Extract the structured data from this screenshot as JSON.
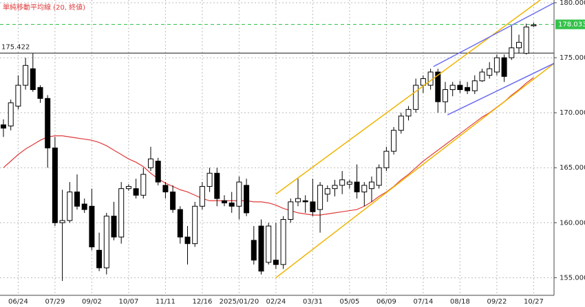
{
  "chart_data": {
    "type": "candlestick",
    "categories": [
      null,
      null,
      "06/24",
      null,
      null,
      null,
      null,
      "07/29",
      null,
      null,
      null,
      null,
      "09/02",
      null,
      null,
      null,
      null,
      "10/07",
      null,
      null,
      null,
      null,
      "11/11",
      null,
      null,
      null,
      null,
      "12/16",
      null,
      null,
      null,
      null,
      "2025/01/20",
      null,
      null,
      null,
      null,
      "02/24",
      null,
      null,
      null,
      null,
      "03/31",
      null,
      null,
      null,
      null,
      "05/05",
      null,
      null,
      null,
      null,
      "06/09",
      null,
      null,
      null,
      null,
      "07/14",
      null,
      null,
      null,
      null,
      "08/18",
      null,
      null,
      null,
      null,
      "09/22",
      null,
      null,
      null,
      null,
      "10/27"
    ],
    "open": [
      168.9,
      168.8,
      170.6,
      172.5,
      174.0,
      172.3,
      171.3,
      166.8,
      160.0,
      160.2,
      162.8,
      161.7,
      161.5,
      157.5,
      155.9,
      160.6,
      158.7,
      163.1,
      163.1,
      162.5,
      165.0,
      165.6,
      163.4,
      162.8,
      161.2,
      158.7,
      158.1,
      161.5,
      163.3,
      164.5,
      162.0,
      161.8,
      161.5,
      163.4,
      158.4,
      159.7,
      156.4,
      156.6,
      156.2,
      160.3,
      161.9,
      162.0,
      161.9,
      161.2,
      162.6,
      163.1,
      163.4,
      163.5,
      163.7,
      162.8,
      163.1,
      163.4,
      165.0,
      166.5,
      168.4,
      169.7,
      170.3,
      172.5,
      172.5,
      173.7,
      171.0,
      172.1,
      172.5,
      172.3,
      172.0,
      172.9,
      173.4,
      173.7,
      175.0,
      175.0,
      175.9,
      175.4,
      177.9
    ],
    "high": [
      169.4,
      171.2,
      173.4,
      175.0,
      175.4,
      172.5,
      171.6,
      167.8,
      163.0,
      163.7,
      164.4,
      162.2,
      163.1,
      159.1,
      160.9,
      161.9,
      163.7,
      163.5,
      164.0,
      165.0,
      166.9,
      165.9,
      163.7,
      163.4,
      161.5,
      159.7,
      161.9,
      163.7,
      165.0,
      165.0,
      162.5,
      162.8,
      164.2,
      164.0,
      159.7,
      160.3,
      160.0,
      160.0,
      160.6,
      162.2,
      164.0,
      162.5,
      164.0,
      163.7,
      163.4,
      163.9,
      164.7,
      163.9,
      165.3,
      163.7,
      164.2,
      165.3,
      166.9,
      168.7,
      170.0,
      170.6,
      173.1,
      173.4,
      174.0,
      174.0,
      172.8,
      172.8,
      172.9,
      172.8,
      173.4,
      174.0,
      174.6,
      175.3,
      175.3,
      177.9,
      177.1,
      178.1,
      178.2
    ],
    "low": [
      167.8,
      168.4,
      170.3,
      172.1,
      171.9,
      170.9,
      165.0,
      159.7,
      154.7,
      160.0,
      161.2,
      160.9,
      157.5,
      155.6,
      155.3,
      158.4,
      158.1,
      162.9,
      162.2,
      162.2,
      164.7,
      163.4,
      162.2,
      160.9,
      158.1,
      156.2,
      157.8,
      161.2,
      162.8,
      161.5,
      161.5,
      160.9,
      160.3,
      160.6,
      156.2,
      155.3,
      156.2,
      155.8,
      155.8,
      160.0,
      161.5,
      160.9,
      160.6,
      159.1,
      161.9,
      162.4,
      162.6,
      163.1,
      162.2,
      161.5,
      161.9,
      163.1,
      164.7,
      166.2,
      168.1,
      169.3,
      170.0,
      171.8,
      172.1,
      170.0,
      170.0,
      171.5,
      171.8,
      171.7,
      171.7,
      172.8,
      173.1,
      173.4,
      172.8,
      174.8,
      175.4,
      175.3,
      177.8
    ],
    "close": [
      168.6,
      170.9,
      172.5,
      174.3,
      172.1,
      171.3,
      166.8,
      160.0,
      160.2,
      162.8,
      161.5,
      161.2,
      157.8,
      155.9,
      160.6,
      158.7,
      163.1,
      163.3,
      162.5,
      164.4,
      165.8,
      163.7,
      162.8,
      161.2,
      158.7,
      158.1,
      161.5,
      163.3,
      164.5,
      162.2,
      161.8,
      161.5,
      163.7,
      160.9,
      156.6,
      155.6,
      159.7,
      156.2,
      160.3,
      161.9,
      162.2,
      161.9,
      161.0,
      163.4,
      163.1,
      163.4,
      163.9,
      163.7,
      162.8,
      163.4,
      163.7,
      165.0,
      166.5,
      168.4,
      169.7,
      170.3,
      172.5,
      173.1,
      173.7,
      171.0,
      172.1,
      172.5,
      172.1,
      172.0,
      172.9,
      173.7,
      174.0,
      175.0,
      173.3,
      175.9,
      176.4,
      177.8,
      178.0
    ],
    "up_color": "#ffffff",
    "down_color": "#000000",
    "series": [
      {
        "name": "単純移動平均線 (20, 終値)",
        "color": "#e03a3a",
        "values": [
          165.0,
          165.6,
          166.2,
          166.7,
          167.1,
          167.5,
          167.8,
          167.9,
          167.9,
          167.8,
          167.7,
          167.6,
          167.5,
          167.3,
          167.0,
          166.6,
          166.2,
          165.8,
          165.5,
          165.1,
          164.5,
          164.0,
          163.6,
          163.3,
          163.0,
          162.8,
          162.5,
          162.2,
          162.0,
          162.0,
          162.0,
          162.0,
          162.0,
          162.0,
          161.9,
          161.9,
          161.8,
          161.6,
          161.3,
          161.1,
          160.9,
          160.8,
          160.7,
          160.7,
          160.8,
          160.9,
          161.0,
          161.1,
          161.2,
          161.5,
          161.9,
          162.4,
          162.8,
          163.3,
          163.9,
          164.4,
          165.0,
          165.6,
          166.1,
          166.6,
          167.1,
          167.6,
          168.1,
          168.6,
          169.1,
          169.6,
          170.0,
          170.5,
          171.0,
          171.6,
          172.1,
          172.7,
          173.2
        ]
      }
    ],
    "reference_line": {
      "value": 175.422,
      "color": "#333333"
    },
    "last_price": {
      "value": 178.033,
      "color": "#33c24a"
    },
    "trend_lines": [
      {
        "color": "#f0b400",
        "x": [
          37,
          73
        ],
        "y": [
          162.6,
          180.3
        ]
      },
      {
        "color": "#f0b400",
        "x": [
          37,
          75
        ],
        "y": [
          155.0,
          174.6
        ]
      },
      {
        "color": "#6b6bf0",
        "x": [
          58.4,
          74.8
        ],
        "y": [
          174.2,
          180.0
        ]
      },
      {
        "color": "#6b6bf0",
        "x": [
          60.3,
          74.8
        ],
        "y": [
          169.8,
          174.5
        ]
      }
    ],
    "ylim": [
      153.4,
      180.25
    ],
    "yticks": [
      {
        "value": 155,
        "label": "155.000"
      },
      {
        "value": 160,
        "label": "160.000"
      },
      {
        "value": 165,
        "label": "165.000"
      },
      {
        "value": 170,
        "label": "170.000"
      },
      {
        "value": 175,
        "label": "175.000"
      },
      {
        "value": 180,
        "label": "180.000"
      }
    ],
    "grid": true
  }
}
